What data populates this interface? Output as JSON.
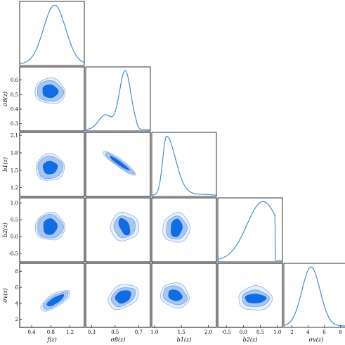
{
  "chart_data": {
    "type": "corner",
    "parameters": [
      {
        "key": "f",
        "label": "f(z)",
        "ticks": [
          0.4,
          0.8,
          1.2
        ],
        "range": [
          0.15,
          1.5
        ]
      },
      {
        "key": "s8",
        "label": "σ8(z)",
        "ticks": [
          0.3,
          0.4,
          0.5,
          0.6
        ],
        "range": [
          0.25,
          0.69
        ],
        "x_ticks": [
          0.3,
          0.5,
          0.7
        ],
        "x_range": [
          0.25,
          0.8
        ]
      },
      {
        "key": "b1",
        "label": "b1(z)",
        "ticks": [
          1.2,
          1.5,
          1.8,
          2.1
        ],
        "range": [
          1.05,
          2.15
        ],
        "x_ticks": [
          1.0,
          1.5,
          2.0
        ],
        "x_range": [
          0.95,
          2.15
        ]
      },
      {
        "key": "b2",
        "label": "b2(z)",
        "ticks": [
          -0.5,
          0.0,
          0.5,
          1.0
        ],
        "range": [
          -0.75,
          1.15
        ],
        "x_ticks": [
          -0.5,
          0.0,
          0.5,
          1.0
        ],
        "x_range": [
          -0.75,
          1.15
        ]
      },
      {
        "key": "sv",
        "label": "σv(z)",
        "ticks": [
          2,
          4,
          6,
          8
        ],
        "range": [
          1.0,
          9.0
        ],
        "x_ticks": [
          2,
          4,
          6,
          8
        ],
        "x_range": [
          1.0,
          9.0
        ]
      }
    ],
    "marginals": {
      "f": {
        "peak": 0.85,
        "shape": "unimodal"
      },
      "s8": {
        "peak": 0.58,
        "shape": "left-skewed with shoulder near 0.38"
      },
      "b1": {
        "peak": 1.3,
        "shape": "right-skewed"
      },
      "b2": {
        "peak": 0.6,
        "shape": "broad, sharp cutoff near 1.0"
      },
      "sv": {
        "peak": 4.1,
        "shape": "unimodal"
      }
    },
    "contour_levels": [
      "1-sigma",
      "2-sigma",
      "3-sigma"
    ],
    "colors": {
      "inner": "#0f6ee6",
      "middle": "#a7c6f3",
      "outer": "#e6effa",
      "line": "#2f86d8"
    }
  }
}
